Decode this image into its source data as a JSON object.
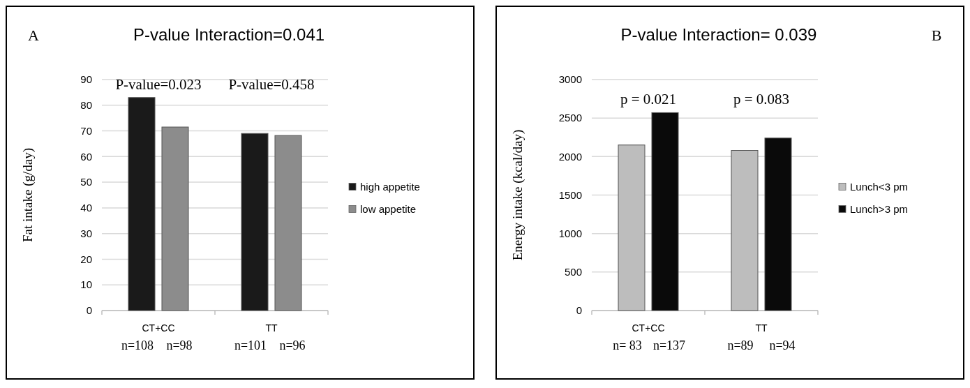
{
  "chart_data": [
    {
      "type": "bar",
      "title": "P-value Interaction=0.041",
      "ylabel": "Fat intake (g/day)",
      "categories": [
        "CT+CC",
        "TT"
      ],
      "series": [
        {
          "name": "high appetite",
          "color": "#1a1a1a",
          "values": [
            83,
            69
          ]
        },
        {
          "name": "low appetite",
          "color": "#8c8c8c",
          "values": [
            71.5,
            68.2
          ]
        }
      ],
      "ylim": [
        0,
        90
      ],
      "yticks": [
        0,
        10,
        20,
        30,
        40,
        50,
        60,
        70,
        80,
        90
      ],
      "grid": "y",
      "legend": "right",
      "annotations": [
        "A",
        "P-value=0.023",
        "P-value=0.458",
        "n=108",
        "n=98",
        "n=101",
        "n=96"
      ]
    },
    {
      "type": "bar",
      "title": "P-value Interaction= 0.039",
      "ylabel": "Energy intake (kcal/day)",
      "categories": [
        "CT+CC",
        "TT"
      ],
      "series": [
        {
          "name": "Lunch<3 pm",
          "color": "#bdbdbd",
          "values": [
            2150,
            2080
          ]
        },
        {
          "name": "Lunch>3 pm",
          "color": "#0a0a0a",
          "values": [
            2570,
            2240
          ]
        }
      ],
      "ylim": [
        0,
        3000
      ],
      "yticks": [
        0,
        500,
        1000,
        1500,
        2000,
        2500,
        3000
      ],
      "grid": "y",
      "legend": "right",
      "annotations": [
        "B",
        "p = 0.021",
        "p = 0.083",
        "n= 83",
        "n=137",
        "n=89",
        "n=94"
      ]
    }
  ]
}
